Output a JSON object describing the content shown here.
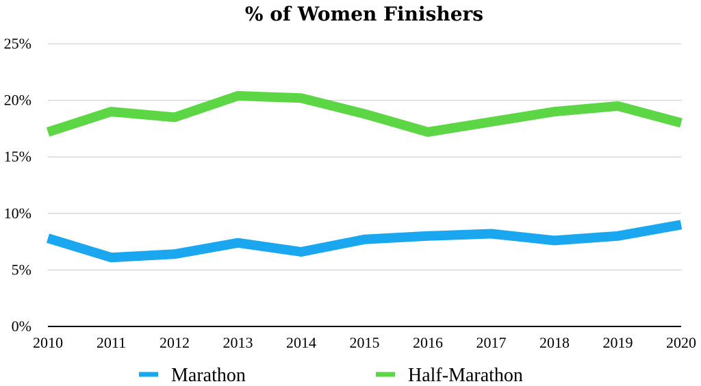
{
  "chart_data": {
    "type": "line",
    "title": "% of Women Finishers",
    "xlabel": "",
    "ylabel": "",
    "x": [
      "2010",
      "2011",
      "2012",
      "2013",
      "2014",
      "2015",
      "2016",
      "2017",
      "2018",
      "2019",
      "2020"
    ],
    "ylim": [
      0,
      25
    ],
    "y_ticks": [
      "0%",
      "5%",
      "10%",
      "15%",
      "20%",
      "25%"
    ],
    "grid": true,
    "legend_position": "bottom",
    "series": [
      {
        "name": "Marathon",
        "color": "#1aa7f0",
        "values": [
          7.8,
          6.1,
          6.4,
          7.4,
          6.6,
          7.7,
          8.0,
          8.2,
          7.6,
          8.0,
          9.0
        ]
      },
      {
        "name": "Half-Marathon",
        "color": "#5dd646",
        "values": [
          17.2,
          19.0,
          18.5,
          20.4,
          20.2,
          18.8,
          17.2,
          18.1,
          19.0,
          19.5,
          18.0
        ]
      }
    ]
  }
}
